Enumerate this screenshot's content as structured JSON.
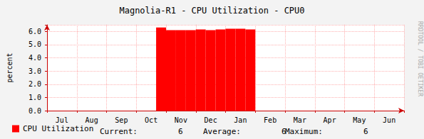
{
  "chart_data": {
    "type": "area",
    "title": "Magnolia-R1 - CPU Utilization - CPU0",
    "y_label": "percent",
    "side_text": "RRDTOOL / TOBI OETIKER",
    "categories": [
      null,
      "Jul",
      null,
      null,
      "Aug",
      null,
      null,
      "Sep",
      null,
      null,
      "Oct",
      null,
      null,
      "Nov",
      null,
      null,
      "Dec",
      null,
      null,
      "Jan",
      null,
      null,
      "Feb",
      null,
      null,
      "Mar",
      null,
      null,
      "Apr",
      null,
      null,
      "May",
      null,
      null,
      "Jun",
      null
    ],
    "series": [
      {
        "name": "CPU Utilization",
        "color": "#ff0000",
        "values": [
          null,
          null,
          null,
          null,
          null,
          null,
          null,
          null,
          null,
          null,
          null,
          6.3,
          6.1,
          6.1,
          6.1,
          6.15,
          6.1,
          6.15,
          6.2,
          6.2,
          6.15,
          null,
          null,
          null,
          null,
          null,
          null,
          null,
          null,
          null,
          null,
          null,
          null,
          null,
          null,
          null
        ]
      }
    ],
    "stats": [
      {
        "label": "Current:",
        "value": 6
      },
      {
        "label": "Average:",
        "value": 6
      },
      {
        "label": "Maximum:",
        "value": 6
      }
    ],
    "ylim": [
      0,
      6.5
    ],
    "yticks": [
      {
        "value": 0,
        "label": "0.0"
      },
      {
        "value": 1,
        "label": "1.0"
      },
      {
        "value": 2,
        "label": "2.0"
      },
      {
        "value": 3,
        "label": "3.0"
      },
      {
        "value": 4,
        "label": "4.0"
      },
      {
        "value": 5,
        "label": "5.0"
      },
      {
        "value": 6,
        "label": "6.0"
      }
    ],
    "grid": true,
    "legend": "bottom-left"
  }
}
